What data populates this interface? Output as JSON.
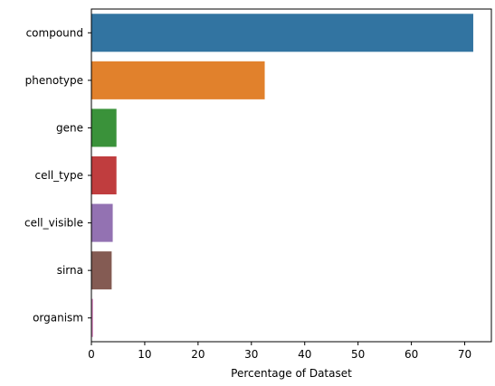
{
  "chart_data": {
    "type": "bar",
    "orientation": "horizontal",
    "categories": [
      "compound",
      "phenotype",
      "gene",
      "cell_type",
      "cell_visible",
      "sirna",
      "organism"
    ],
    "values": [
      71.6,
      32.5,
      4.7,
      4.7,
      4.0,
      3.8,
      0.3
    ],
    "colors": [
      "#3274a1",
      "#e1812c",
      "#3a923a",
      "#c03d3e",
      "#9372b2",
      "#845b53",
      "#d684bd"
    ],
    "title": "",
    "xlabel": "Percentage of Dataset",
    "ylabel": "",
    "xlim": [
      0,
      75
    ],
    "xticks": [
      0,
      10,
      20,
      30,
      40,
      50,
      60,
      70
    ],
    "grid": false,
    "legend": false
  }
}
